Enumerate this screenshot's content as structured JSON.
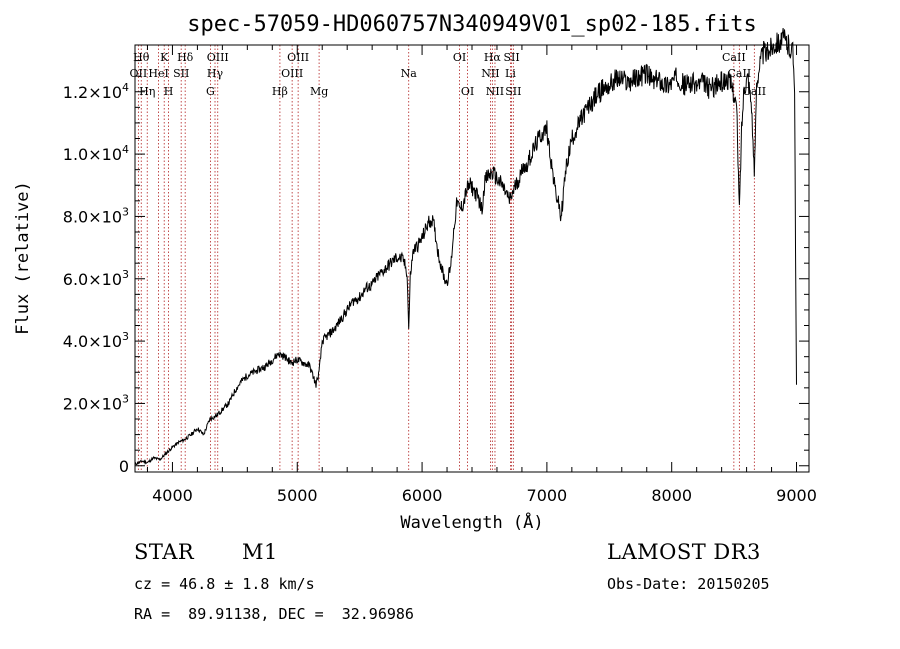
{
  "chart_data": {
    "type": "line",
    "title": "spec-57059-HD060757N340949V01_sp02-185.fits",
    "xlabel": "Wavelength (Å)",
    "ylabel": "Flux (relative)",
    "xlim": [
      3700,
      9100
    ],
    "ylim": [
      -200,
      13500
    ],
    "x_ticks": [
      {
        "value": 4000,
        "label": "4000"
      },
      {
        "value": 5000,
        "label": "5000"
      },
      {
        "value": 6000,
        "label": "6000"
      },
      {
        "value": 7000,
        "label": "7000"
      },
      {
        "value": 8000,
        "label": "8000"
      },
      {
        "value": 9000,
        "label": "9000"
      }
    ],
    "y_ticks": [
      {
        "value": 0,
        "mantissa": "0",
        "exp": ""
      },
      {
        "value": 2000,
        "mantissa": "2.0×10",
        "exp": "3"
      },
      {
        "value": 4000,
        "mantissa": "4.0×10",
        "exp": "3"
      },
      {
        "value": 6000,
        "mantissa": "6.0×10",
        "exp": "3"
      },
      {
        "value": 8000,
        "mantissa": "8.0×10",
        "exp": "3"
      },
      {
        "value": 10000,
        "mantissa": "1.0×10",
        "exp": "4"
      },
      {
        "value": 12000,
        "mantissa": "1.2×10",
        "exp": "4"
      }
    ],
    "series": [
      {
        "name": "spectrum",
        "x": [
          3700,
          3760,
          3800,
          3850,
          3900,
          3950,
          4000,
          4050,
          4100,
          4150,
          4200,
          4250,
          4300,
          4350,
          4400,
          4450,
          4500,
          4550,
          4600,
          4650,
          4700,
          4750,
          4800,
          4850,
          4900,
          4950,
          5000,
          5050,
          5100,
          5150,
          5175,
          5200,
          5250,
          5300,
          5350,
          5400,
          5450,
          5500,
          5550,
          5600,
          5650,
          5700,
          5750,
          5800,
          5850,
          5880,
          5893,
          5906,
          5930,
          5970,
          6000,
          6050,
          6080,
          6100,
          6130,
          6160,
          6180,
          6200,
          6230,
          6250,
          6280,
          6300,
          6330,
          6360,
          6390,
          6420,
          6450,
          6480,
          6500,
          6530,
          6563,
          6600,
          6640,
          6680,
          6700,
          6730,
          6760,
          6790,
          6810,
          6830,
          6850,
          6880,
          6910,
          6950,
          7000,
          7030,
          7060,
          7080,
          7100,
          7110,
          7125,
          7140,
          7160,
          7180,
          7200,
          7250,
          7300,
          7350,
          7400,
          7450,
          7500,
          7550,
          7600,
          7650,
          7700,
          7750,
          7800,
          7850,
          7900,
          7950,
          8000,
          8050,
          8100,
          8150,
          8200,
          8250,
          8300,
          8350,
          8400,
          8450,
          8490,
          8520,
          8542,
          8560,
          8580,
          8610,
          8640,
          8662,
          8680,
          8700,
          8720,
          8740,
          8760,
          8790,
          8810,
          8840,
          8870,
          8900,
          8930,
          8950,
          8970,
          8985,
          8992,
          9000
        ],
        "y": [
          50,
          150,
          100,
          250,
          200,
          400,
          600,
          750,
          850,
          1000,
          1200,
          1000,
          1500,
          1600,
          1800,
          2000,
          2400,
          2700,
          2900,
          3000,
          3100,
          3200,
          3400,
          3600,
          3500,
          3300,
          3400,
          3300,
          3200,
          2600,
          3000,
          4000,
          4200,
          4400,
          4700,
          5000,
          5300,
          5400,
          5700,
          5800,
          6100,
          6300,
          6500,
          6700,
          6600,
          6200,
          4400,
          6100,
          6900,
          7100,
          7300,
          7800,
          7900,
          7600,
          6800,
          6300,
          6000,
          5900,
          6400,
          7400,
          8500,
          8200,
          8400,
          8900,
          9000,
          8800,
          8600,
          8200,
          9100,
          9300,
          9400,
          9200,
          9000,
          8700,
          8500,
          8800,
          9100,
          9300,
          9700,
          9500,
          9800,
          10000,
          10300,
          10600,
          10800,
          9900,
          9000,
          8600,
          8300,
          7900,
          8400,
          9100,
          9700,
          10100,
          10500,
          10900,
          11300,
          11600,
          11900,
          12100,
          12200,
          12400,
          12400,
          12300,
          12400,
          12500,
          12600,
          12300,
          12400,
          12200,
          12300,
          12500,
          12200,
          12300,
          12200,
          12300,
          12100,
          12200,
          12300,
          12400,
          12100,
          11500,
          8200,
          10800,
          12200,
          12500,
          11600,
          9200,
          12300,
          12800,
          13100,
          13300,
          13200,
          13400,
          13500,
          13600,
          13600,
          13700,
          13500,
          13400,
          13300,
          12300,
          7000,
          2600
        ]
      }
    ],
    "spectral_lines": [
      {
        "wavelength": 3750,
        "label": "Hθ",
        "row": 1
      },
      {
        "wavelength": 3727,
        "label": "OII",
        "row": 2
      },
      {
        "wavelength": 3798,
        "label": "Hη",
        "row": 3
      },
      {
        "wavelength": 3889,
        "label": "HeI",
        "row": 2
      },
      {
        "wavelength": 3934,
        "label": "K",
        "row": 1
      },
      {
        "wavelength": 3969,
        "label": "H",
        "row": 3
      },
      {
        "wavelength": 4070,
        "label": "SII",
        "row": 2
      },
      {
        "wavelength": 4102,
        "label": "Hδ",
        "row": 1
      },
      {
        "wavelength": 4304,
        "label": "G",
        "row": 3
      },
      {
        "wavelength": 4341,
        "label": "Hγ",
        "row": 2
      },
      {
        "wavelength": 4363,
        "label": "OIII",
        "row": 1
      },
      {
        "wavelength": 4861,
        "label": "Hβ",
        "row": 3
      },
      {
        "wavelength": 4959,
        "label": "OIII",
        "row": 2
      },
      {
        "wavelength": 5007,
        "label": "OIII",
        "row": 1
      },
      {
        "wavelength": 5175,
        "label": "Mg",
        "row": 3
      },
      {
        "wavelength": 5893,
        "label": "Na",
        "row": 2
      },
      {
        "wavelength": 6300,
        "label": "OI",
        "row": 1
      },
      {
        "wavelength": 6364,
        "label": "OI",
        "row": 3
      },
      {
        "wavelength": 6548,
        "label": "NII",
        "row": 2
      },
      {
        "wavelength": 6563,
        "label": "Hα",
        "row": 1
      },
      {
        "wavelength": 6584,
        "label": "NII",
        "row": 3
      },
      {
        "wavelength": 6708,
        "label": "Li",
        "row": 2
      },
      {
        "wavelength": 6717,
        "label": "SII",
        "row": 1
      },
      {
        "wavelength": 6731,
        "label": "SII",
        "row": 3
      },
      {
        "wavelength": 8498,
        "label": "CaII",
        "row": 1
      },
      {
        "wavelength": 8542,
        "label": "CaII",
        "row": 2
      },
      {
        "wavelength": 8662,
        "label": "CaII",
        "row": 3
      }
    ]
  },
  "info": {
    "object_class": "STAR",
    "subclass": "M1",
    "survey": "LAMOST DR3",
    "cz": "cz = 46.8 ± 1.8 km/s",
    "obs_date": "Obs-Date: 20150205",
    "coords": "RA =  89.91138, DEC =  32.96986"
  },
  "colors": {
    "spectrum": "#000000",
    "spectral_line": "#b22222",
    "axis": "#000000",
    "background": "#ffffff"
  }
}
